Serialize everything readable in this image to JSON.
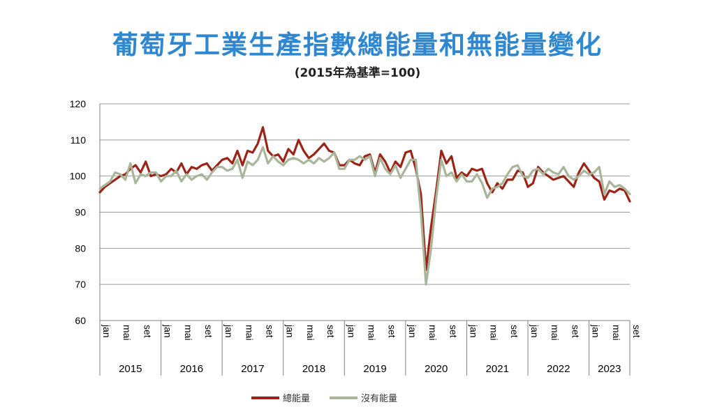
{
  "title": "葡萄牙工業生產指數總能量和無能量變化",
  "subtitle": "(2015年為基準=100)",
  "colors": {
    "title": "#2e87cf",
    "series_total": "#9b2416",
    "series_no_energy": "#a8b599",
    "grid": "#9a9a9a"
  },
  "chart_data": {
    "type": "line",
    "ylim": [
      60,
      120
    ],
    "yticks": [
      "60",
      "70",
      "80",
      "90",
      "100",
      "110",
      "120"
    ],
    "grid": true,
    "legend_position": "bottom-center",
    "years": [
      "2015",
      "2016",
      "2017",
      "2018",
      "2019",
      "2020",
      "2021",
      "2022",
      "2023"
    ],
    "month_tick_labels": [
      "jan",
      "mai",
      "set"
    ],
    "x_start": "2015-01",
    "x_end": "2023-09",
    "series": [
      {
        "name": "總能量",
        "color": "#9b2416",
        "values": [
          95.5,
          97.0,
          98.0,
          99.0,
          100.0,
          100.5,
          102.0,
          103.0,
          101.0,
          104.0,
          100.0,
          100.5,
          100.0,
          100.5,
          102.0,
          101.0,
          103.5,
          100.5,
          102.5,
          102.0,
          103.0,
          103.5,
          101.5,
          103.0,
          104.5,
          105.0,
          103.5,
          107.0,
          103.0,
          107.0,
          106.5,
          109.0,
          113.5,
          107.0,
          105.5,
          106.0,
          104.0,
          107.5,
          106.0,
          110.0,
          107.0,
          105.0,
          106.0,
          107.5,
          109.0,
          107.0,
          106.5,
          103.0,
          103.0,
          104.5,
          103.5,
          103.0,
          105.5,
          106.0,
          101.0,
          106.0,
          104.0,
          101.0,
          104.0,
          102.5,
          106.5,
          107.0,
          102.0,
          95.0,
          74.0,
          86.0,
          96.0,
          107.0,
          103.5,
          105.5,
          99.5,
          101.0,
          100.0,
          102.0,
          101.5,
          102.0,
          98.0,
          95.5,
          98.0,
          96.5,
          99.0,
          99.0,
          101.5,
          101.0,
          97.0,
          98.0,
          102.5,
          101.0,
          100.0,
          99.0,
          99.5,
          100.0,
          98.5,
          97.0,
          101.0,
          103.5,
          101.5,
          99.5,
          98.5,
          93.5,
          96.0,
          95.5,
          96.5,
          96.0,
          93.0
        ]
      },
      {
        "name": "沒有能量",
        "color": "#a8b599",
        "values": [
          96.5,
          97.5,
          98.5,
          101.0,
          100.5,
          99.0,
          103.5,
          98.0,
          100.5,
          100.0,
          101.0,
          101.0,
          98.5,
          100.0,
          100.0,
          101.5,
          98.5,
          100.5,
          99.0,
          100.0,
          100.5,
          99.0,
          101.0,
          102.5,
          102.5,
          101.5,
          102.0,
          104.5,
          99.5,
          104.0,
          103.0,
          104.5,
          108.0,
          103.5,
          105.5,
          104.0,
          103.0,
          104.5,
          105.0,
          104.5,
          103.5,
          104.5,
          103.5,
          105.0,
          104.0,
          105.0,
          106.5,
          102.0,
          102.0,
          104.5,
          104.5,
          105.5,
          104.5,
          105.5,
          100.0,
          105.0,
          102.0,
          100.5,
          103.0,
          99.5,
          102.0,
          104.5,
          104.5,
          90.0,
          70.0,
          80.0,
          94.0,
          104.5,
          100.0,
          101.0,
          98.5,
          100.5,
          98.5,
          98.5,
          100.5,
          98.0,
          94.0,
          96.5,
          97.0,
          98.0,
          100.5,
          102.5,
          103.0,
          100.0,
          99.5,
          101.5,
          102.0,
          100.5,
          102.0,
          101.0,
          100.5,
          102.5,
          100.0,
          99.0,
          100.0,
          101.5,
          100.5,
          101.0,
          102.5,
          95.0,
          98.5,
          97.0,
          97.5,
          96.5,
          95.0
        ]
      }
    ]
  }
}
